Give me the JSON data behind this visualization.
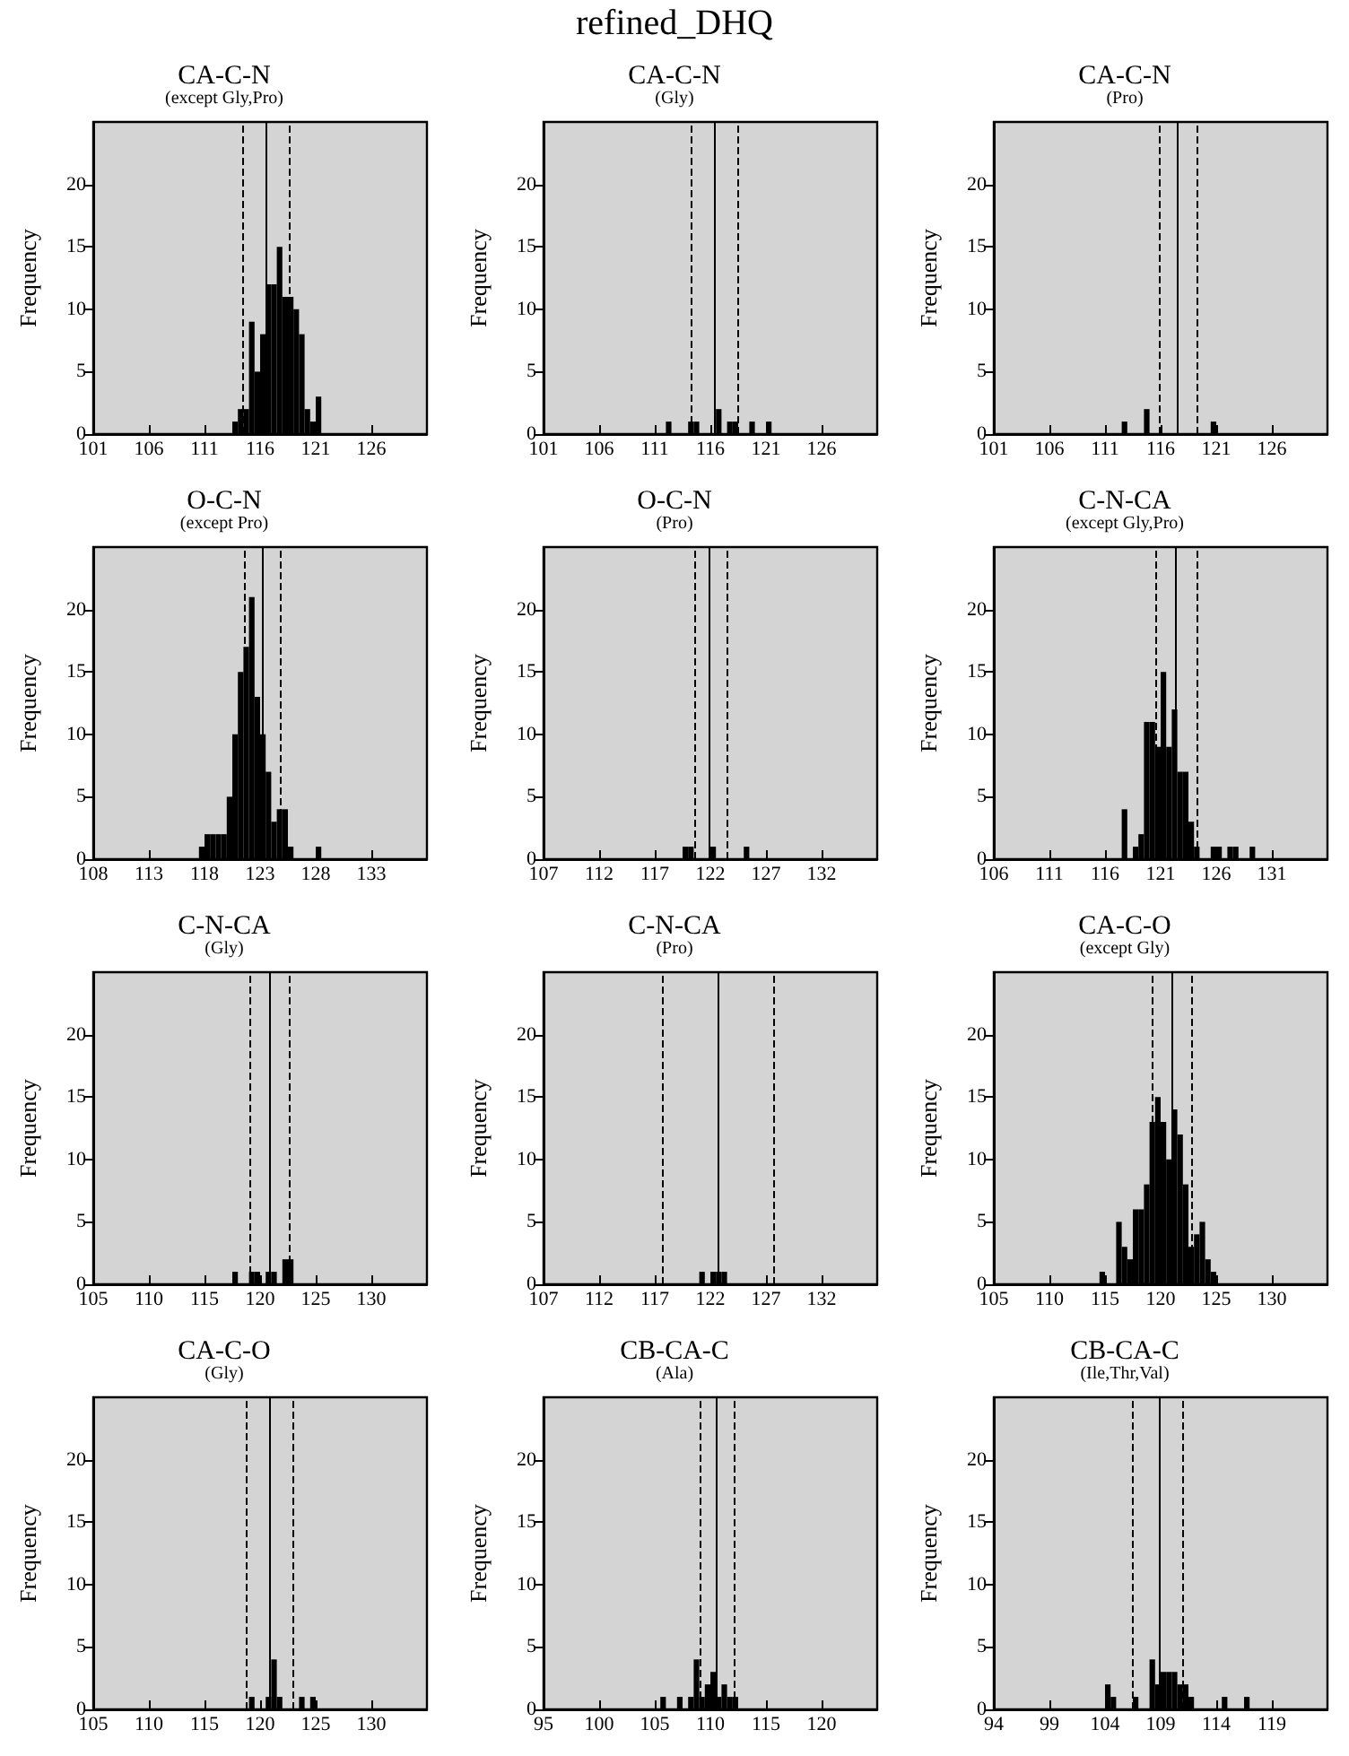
{
  "chart_data": [
    {
      "type": "histogram",
      "title": "CA-C-N",
      "subtitle": "(except Gly,Pro)",
      "ylabel": "Frequency",
      "annotations": [
        "refined_DHQ"
      ],
      "color": "#000000",
      "bins": [
        113.5,
        114,
        114.5,
        115,
        115.5,
        116,
        116.5,
        117,
        117.5,
        118,
        118.5,
        119,
        119.5,
        120,
        120.5,
        121,
        121.5
      ],
      "values": [
        1,
        2,
        2,
        9,
        5,
        8,
        12,
        12,
        15,
        11,
        11,
        10,
        8,
        2,
        1,
        3
      ],
      "xlim": [
        101,
        131
      ],
      "xticks": [
        101,
        106,
        111,
        116,
        121,
        126
      ],
      "ylim": [
        0,
        25
      ],
      "yticks": [
        0,
        5,
        10,
        15,
        20
      ],
      "grid": false,
      "ref_lines": [
        {
          "axis": "x",
          "value": 114.4,
          "line_style": "dashed",
          "color": "#000000"
        },
        {
          "axis": "x",
          "value": 116.6,
          "line_style": "solid",
          "color": "#000000"
        },
        {
          "axis": "x",
          "value": 118.7,
          "line_style": "dashed",
          "color": "#000000"
        }
      ]
    },
    {
      "type": "histogram",
      "title": "CA-C-N",
      "subtitle": "(Gly)",
      "ylabel": "Frequency",
      "color": "#000000",
      "bins": [
        112,
        112.5,
        113,
        113.5,
        114,
        114.5,
        115,
        115.5,
        116,
        116.5,
        117,
        117.5,
        118,
        118.5,
        119,
        119.5,
        120,
        120.5,
        121,
        121.5
      ],
      "values": [
        1,
        0,
        0,
        0,
        1,
        1,
        0,
        0,
        0,
        2,
        0,
        1,
        1,
        0,
        0,
        1,
        0,
        0,
        1
      ],
      "xlim": [
        101,
        131
      ],
      "xticks": [
        101,
        106,
        111,
        116,
        121,
        126
      ],
      "ylim": [
        0,
        25
      ],
      "yticks": [
        0,
        5,
        10,
        15,
        20
      ],
      "grid": false,
      "ref_lines": [
        {
          "axis": "x",
          "value": 114.3,
          "line_style": "dashed",
          "color": "#000000"
        },
        {
          "axis": "x",
          "value": 116.4,
          "line_style": "solid",
          "color": "#000000"
        },
        {
          "axis": "x",
          "value": 118.5,
          "line_style": "dashed",
          "color": "#000000"
        }
      ]
    },
    {
      "type": "histogram",
      "title": "CA-C-N",
      "subtitle": "(Pro)",
      "ylabel": "Frequency",
      "color": "#000000",
      "bins": [
        112.5,
        113,
        113.5,
        114,
        114.5,
        115,
        115.5,
        116,
        116.5,
        117,
        117.5,
        118,
        118.5,
        119,
        119.5,
        120,
        120.5,
        121
      ],
      "values": [
        1,
        0,
        0,
        0,
        2,
        0,
        0,
        0,
        0,
        0,
        0,
        0,
        0,
        0,
        0,
        0,
        1
      ],
      "xlim": [
        101,
        131
      ],
      "xticks": [
        101,
        106,
        111,
        116,
        121,
        126
      ],
      "ylim": [
        0,
        25
      ],
      "yticks": [
        0,
        5,
        10,
        15,
        20
      ],
      "grid": false,
      "ref_lines": [
        {
          "axis": "x",
          "value": 115.8,
          "line_style": "dashed",
          "color": "#000000"
        },
        {
          "axis": "x",
          "value": 117.5,
          "line_style": "solid",
          "color": "#000000"
        },
        {
          "axis": "x",
          "value": 119.2,
          "line_style": "dashed",
          "color": "#000000"
        }
      ]
    },
    {
      "type": "histogram",
      "title": "O-C-N",
      "subtitle": "(except Pro)",
      "ylabel": "Frequency",
      "color": "#000000",
      "bins": [
        117.5,
        118,
        118.5,
        119,
        119.5,
        120,
        120.5,
        121,
        121.5,
        122,
        122.5,
        123,
        123.5,
        124,
        124.5,
        125,
        125.5,
        126,
        126.5,
        127,
        127.5,
        128,
        128.5
      ],
      "values": [
        1,
        2,
        2,
        2,
        2,
        5,
        10,
        15,
        17,
        21,
        13,
        10,
        7,
        3,
        4,
        4,
        1,
        0,
        0,
        0,
        0,
        1
      ],
      "xlim": [
        108,
        138
      ],
      "xticks": [
        108,
        113,
        118,
        123,
        128,
        133
      ],
      "ylim": [
        0,
        25
      ],
      "yticks": [
        0,
        5,
        10,
        15,
        20
      ],
      "grid": false,
      "ref_lines": [
        {
          "axis": "x",
          "value": 121.6,
          "line_style": "dashed",
          "color": "#000000"
        },
        {
          "axis": "x",
          "value": 123.2,
          "line_style": "solid",
          "color": "#000000"
        },
        {
          "axis": "x",
          "value": 124.8,
          "line_style": "dashed",
          "color": "#000000"
        }
      ]
    },
    {
      "type": "histogram",
      "title": "O-C-N",
      "subtitle": "(Pro)",
      "ylabel": "Frequency",
      "color": "#000000",
      "bins": [
        119.5,
        120,
        120.5,
        121,
        121.5,
        122,
        122.5,
        123,
        123.5,
        124,
        124.5,
        125,
        125.5
      ],
      "values": [
        1,
        1,
        0,
        0,
        0,
        1,
        0,
        0,
        0,
        0,
        0,
        1
      ],
      "xlim": [
        107,
        137
      ],
      "xticks": [
        107,
        112,
        117,
        122,
        127,
        132
      ],
      "ylim": [
        0,
        25
      ],
      "yticks": [
        0,
        5,
        10,
        15,
        20
      ],
      "grid": false,
      "ref_lines": [
        {
          "axis": "x",
          "value": 120.6,
          "line_style": "dashed",
          "color": "#000000"
        },
        {
          "axis": "x",
          "value": 121.9,
          "line_style": "solid",
          "color": "#000000"
        },
        {
          "axis": "x",
          "value": 123.5,
          "line_style": "dashed",
          "color": "#000000"
        }
      ]
    },
    {
      "type": "histogram",
      "title": "C-N-CA",
      "subtitle": "(except Gly,Pro)",
      "ylabel": "Frequency",
      "color": "#000000",
      "bins": [
        117.5,
        118,
        118.5,
        119,
        119.5,
        120,
        120.5,
        121,
        121.5,
        122,
        122.5,
        123,
        123.5,
        124,
        124.5,
        125,
        125.5,
        126,
        126.5,
        127,
        127.5,
        128,
        128.5,
        129,
        129.5
      ],
      "values": [
        4,
        0,
        1,
        2,
        11,
        11,
        9,
        15,
        9,
        12,
        7,
        7,
        3,
        1,
        0,
        0,
        1,
        1,
        0,
        1,
        1,
        0,
        0,
        1
      ],
      "xlim": [
        106,
        136
      ],
      "xticks": [
        106,
        111,
        116,
        121,
        126,
        131
      ],
      "ylim": [
        0,
        25
      ],
      "yticks": [
        0,
        5,
        10,
        15,
        20
      ],
      "grid": false,
      "ref_lines": [
        {
          "axis": "x",
          "value": 120.5,
          "line_style": "dashed",
          "color": "#000000"
        },
        {
          "axis": "x",
          "value": 122.3,
          "line_style": "solid",
          "color": "#000000"
        },
        {
          "axis": "x",
          "value": 124.3,
          "line_style": "dashed",
          "color": "#000000"
        }
      ]
    },
    {
      "type": "histogram",
      "title": "C-N-CA",
      "subtitle": "(Gly)",
      "ylabel": "Frequency",
      "color": "#000000",
      "bins": [
        117.5,
        118,
        118.5,
        119,
        119.5,
        120,
        120.5,
        121,
        121.5,
        122,
        122.5,
        123
      ],
      "values": [
        1,
        0,
        0,
        1,
        1,
        0,
        1,
        1,
        0,
        2,
        2
      ],
      "xlim": [
        105,
        135
      ],
      "xticks": [
        105,
        110,
        115,
        120,
        125,
        130
      ],
      "ylim": [
        0,
        25
      ],
      "yticks": [
        0,
        5,
        10,
        15,
        20
      ],
      "grid": false,
      "ref_lines": [
        {
          "axis": "x",
          "value": 119.1,
          "line_style": "dashed",
          "color": "#000000"
        },
        {
          "axis": "x",
          "value": 120.8,
          "line_style": "solid",
          "color": "#000000"
        },
        {
          "axis": "x",
          "value": 122.7,
          "line_style": "dashed",
          "color": "#000000"
        }
      ]
    },
    {
      "type": "histogram",
      "title": "C-N-CA",
      "subtitle": "(Pro)",
      "ylabel": "Frequency",
      "color": "#000000",
      "bins": [
        121,
        121.5,
        122,
        122.5,
        123,
        123.5
      ],
      "values": [
        1,
        0,
        1,
        1,
        1
      ],
      "xlim": [
        107,
        137
      ],
      "xticks": [
        107,
        112,
        117,
        122,
        127,
        132
      ],
      "ylim": [
        0,
        25
      ],
      "yticks": [
        0,
        5,
        10,
        15,
        20
      ],
      "grid": false,
      "ref_lines": [
        {
          "axis": "x",
          "value": 117.7,
          "line_style": "dashed",
          "color": "#000000"
        },
        {
          "axis": "x",
          "value": 122.7,
          "line_style": "solid",
          "color": "#000000"
        },
        {
          "axis": "x",
          "value": 127.7,
          "line_style": "dashed",
          "color": "#000000"
        }
      ]
    },
    {
      "type": "histogram",
      "title": "CA-C-O",
      "subtitle": "(except Gly)",
      "ylabel": "Frequency",
      "color": "#000000",
      "bins": [
        114.5,
        115,
        115.5,
        116,
        116.5,
        117,
        117.5,
        118,
        118.5,
        119,
        119.5,
        120,
        120.5,
        121,
        121.5,
        122,
        122.5,
        123,
        123.5,
        124,
        124.5,
        125
      ],
      "values": [
        1,
        0,
        0,
        5,
        3,
        2,
        6,
        6,
        8,
        13,
        15,
        13,
        10,
        14,
        12,
        8,
        3,
        4,
        5,
        2,
        1
      ],
      "xlim": [
        105,
        135
      ],
      "xticks": [
        105,
        110,
        115,
        120,
        125,
        130
      ],
      "ylim": [
        0,
        25
      ],
      "yticks": [
        0,
        5,
        10,
        15,
        20
      ],
      "grid": false,
      "ref_lines": [
        {
          "axis": "x",
          "value": 119.2,
          "line_style": "dashed",
          "color": "#000000"
        },
        {
          "axis": "x",
          "value": 121,
          "line_style": "solid",
          "color": "#000000"
        },
        {
          "axis": "x",
          "value": 122.8,
          "line_style": "dashed",
          "color": "#000000"
        }
      ]
    },
    {
      "type": "histogram",
      "title": "CA-C-O",
      "subtitle": "(Gly)",
      "ylabel": "Frequency",
      "color": "#000000",
      "bins": [
        119,
        119.5,
        120,
        120.5,
        121,
        121.5,
        122,
        122.5,
        123,
        123.5,
        124,
        124.5,
        125
      ],
      "values": [
        1,
        0,
        0,
        1,
        4,
        1,
        0,
        0,
        0,
        1,
        0,
        1
      ],
      "xlim": [
        105,
        135
      ],
      "xticks": [
        105,
        110,
        115,
        120,
        125,
        130
      ],
      "ylim": [
        0,
        25
      ],
      "yticks": [
        0,
        5,
        10,
        15,
        20
      ],
      "grid": false,
      "ref_lines": [
        {
          "axis": "x",
          "value": 118.8,
          "line_style": "dashed",
          "color": "#000000"
        },
        {
          "axis": "x",
          "value": 120.9,
          "line_style": "solid",
          "color": "#000000"
        },
        {
          "axis": "x",
          "value": 123,
          "line_style": "dashed",
          "color": "#000000"
        }
      ]
    },
    {
      "type": "histogram",
      "title": "CB-CA-C",
      "subtitle": "(Ala)",
      "ylabel": "Frequency",
      "color": "#000000",
      "bins": [
        105.5,
        106,
        106.5,
        107,
        107.5,
        108,
        108.5,
        109,
        109.5,
        110,
        110.5,
        111,
        111.5,
        112,
        112.5
      ],
      "values": [
        1,
        0,
        0,
        1,
        0,
        1,
        4,
        1,
        2,
        3,
        1,
        2,
        1,
        1
      ],
      "xlim": [
        95,
        125
      ],
      "xticks": [
        95,
        100,
        105,
        110,
        115,
        120
      ],
      "ylim": [
        0,
        25
      ],
      "yticks": [
        0,
        5,
        10,
        15,
        20
      ],
      "grid": false,
      "ref_lines": [
        {
          "axis": "x",
          "value": 109,
          "line_style": "dashed",
          "color": "#000000"
        },
        {
          "axis": "x",
          "value": 110.5,
          "line_style": "solid",
          "color": "#000000"
        },
        {
          "axis": "x",
          "value": 112.2,
          "line_style": "dashed",
          "color": "#000000"
        }
      ]
    },
    {
      "type": "histogram",
      "title": "CB-CA-C",
      "subtitle": "(Ile,Thr,Val)",
      "ylabel": "Frequency",
      "color": "#000000",
      "bins": [
        104,
        104.5,
        105,
        105.5,
        106,
        106.5,
        107,
        107.5,
        108,
        108.5,
        109,
        109.5,
        110,
        110.5,
        111,
        111.5,
        112,
        112.5,
        113,
        113.5,
        114,
        114.5,
        115,
        115.5,
        116,
        116.5,
        117
      ],
      "values": [
        2,
        1,
        0,
        0,
        0,
        1,
        0,
        0,
        4,
        2,
        3,
        3,
        3,
        2,
        2,
        1,
        0,
        0,
        0,
        0,
        0,
        1,
        0,
        0,
        0,
        1
      ],
      "xlim": [
        94,
        124
      ],
      "xticks": [
        94,
        99,
        104,
        109,
        114,
        119
      ],
      "ylim": [
        0,
        25
      ],
      "yticks": [
        0,
        5,
        10,
        15,
        20
      ],
      "grid": false,
      "ref_lines": [
        {
          "axis": "x",
          "value": 106.5,
          "line_style": "dashed",
          "color": "#000000"
        },
        {
          "axis": "x",
          "value": 108.8,
          "line_style": "solid",
          "color": "#000000"
        },
        {
          "axis": "x",
          "value": 110.9,
          "line_style": "dashed",
          "color": "#000000"
        }
      ]
    }
  ]
}
